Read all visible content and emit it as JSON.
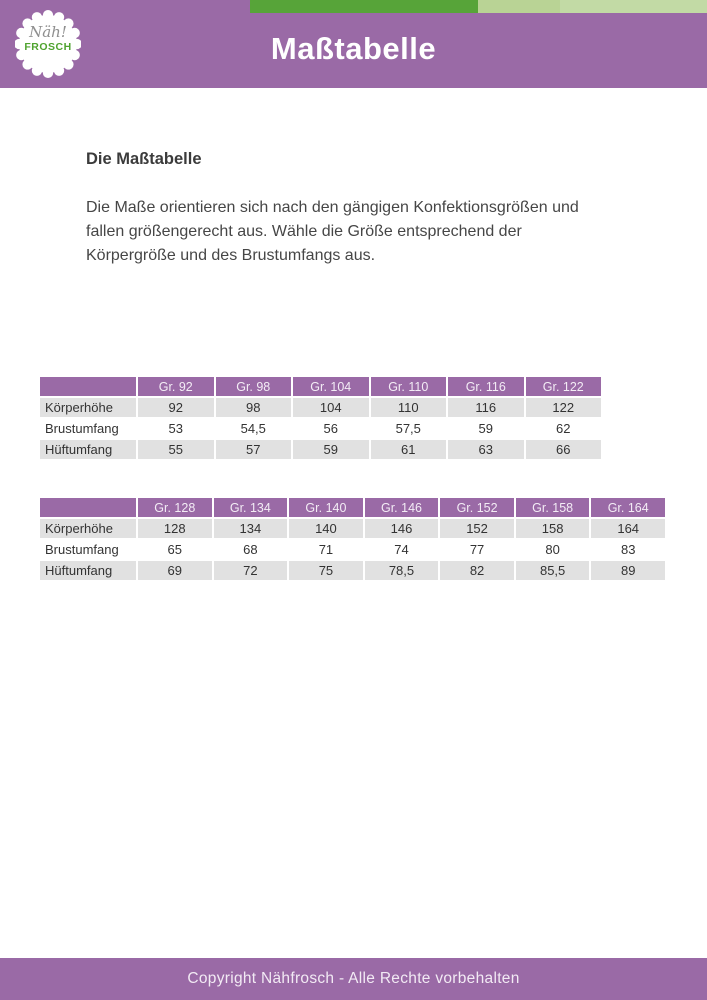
{
  "header": {
    "title": "Maßtabelle",
    "logo": {
      "script": "Näh!",
      "brand": "FROSCH"
    }
  },
  "section": {
    "heading": "Die Maßtabelle",
    "paragraph": "Die Maße orientieren sich nach den gängigen Konfektionsgrößen und fallen größengerecht aus. Wähle die Größe entsprechend der Körpergröße und des Brustumfangs aus."
  },
  "tables": [
    {
      "columns": [
        "",
        "Gr. 92",
        "Gr. 98",
        "Gr. 104",
        "Gr. 110",
        "Gr. 116",
        "Gr. 122"
      ],
      "rows": [
        {
          "label": "Körperhöhe",
          "values": [
            "92",
            "98",
            "104",
            "110",
            "116",
            "122"
          ]
        },
        {
          "label": "Brustumfang",
          "values": [
            "53",
            "54,5",
            "56",
            "57,5",
            "59",
            "62"
          ]
        },
        {
          "label": "Hüftumfang",
          "values": [
            "55",
            "57",
            "59",
            "61",
            "63",
            "66"
          ]
        }
      ]
    },
    {
      "columns": [
        "",
        "Gr. 128",
        "Gr. 134",
        "Gr. 140",
        "Gr. 146",
        "Gr. 152",
        "Gr. 158",
        "Gr. 164"
      ],
      "rows": [
        {
          "label": "Körperhöhe",
          "values": [
            "128",
            "134",
            "140",
            "146",
            "152",
            "158",
            "164"
          ]
        },
        {
          "label": "Brustumfang",
          "values": [
            "65",
            "68",
            "71",
            "74",
            "77",
            "80",
            "83"
          ]
        },
        {
          "label": "Hüftumfang",
          "values": [
            "69",
            "72",
            "75",
            "78,5",
            "82",
            "85,5",
            "89"
          ]
        }
      ]
    }
  ],
  "footer": {
    "text": "Copyright Nähfrosch - Alle Rechte vorbehalten"
  },
  "colors": {
    "purple": "#9a6aa6",
    "green_dark": "#57a439",
    "green_light": "#b9d395",
    "green_light2": "#c2daa5",
    "row_gray": "#e1e1e1",
    "brand_green": "#4fa32f"
  }
}
